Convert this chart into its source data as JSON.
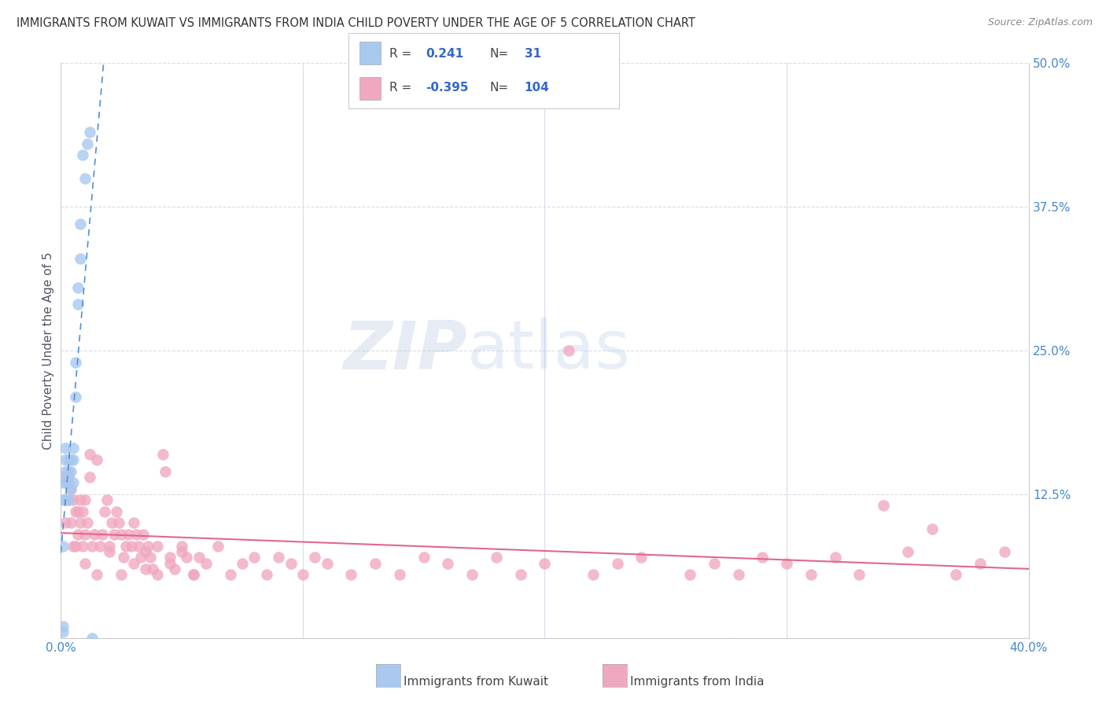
{
  "title": "IMMIGRANTS FROM KUWAIT VS IMMIGRANTS FROM INDIA CHILD POVERTY UNDER THE AGE OF 5 CORRELATION CHART",
  "source": "Source: ZipAtlas.com",
  "ylabel": "Child Poverty Under the Age of 5",
  "xlim": [
    0.0,
    0.4
  ],
  "ylim": [
    0.0,
    0.5
  ],
  "kuwait_R": 0.241,
  "kuwait_N": 31,
  "india_R": -0.395,
  "india_N": 104,
  "kuwait_color": "#a8c8f0",
  "india_color": "#f0a8c0",
  "kuwait_line_color": "#5090d0",
  "india_line_color": "#e06888",
  "background_color": "#ffffff",
  "grid_color": "#d8dce8",
  "watermark_zip": "ZIP",
  "watermark_atlas": "atlas",
  "legend_label_kuwait": "Immigrants from Kuwait",
  "legend_label_india": "Immigrants from India",
  "kuwait_x": [
    0.001,
    0.001,
    0.001,
    0.001,
    0.001,
    0.002,
    0.002,
    0.002,
    0.002,
    0.002,
    0.003,
    0.003,
    0.003,
    0.003,
    0.004,
    0.004,
    0.004,
    0.005,
    0.005,
    0.005,
    0.006,
    0.006,
    0.007,
    0.007,
    0.008,
    0.008,
    0.009,
    0.01,
    0.011,
    0.012,
    0.013
  ],
  "kuwait_y": [
    0.005,
    0.01,
    0.08,
    0.12,
    0.135,
    0.12,
    0.135,
    0.145,
    0.155,
    0.165,
    0.12,
    0.135,
    0.145,
    0.155,
    0.13,
    0.145,
    0.155,
    0.135,
    0.155,
    0.165,
    0.21,
    0.24,
    0.29,
    0.305,
    0.33,
    0.36,
    0.42,
    0.4,
    0.43,
    0.44,
    0.0
  ],
  "india_x": [
    0.001,
    0.002,
    0.003,
    0.003,
    0.004,
    0.004,
    0.005,
    0.005,
    0.006,
    0.006,
    0.007,
    0.007,
    0.008,
    0.008,
    0.009,
    0.009,
    0.01,
    0.01,
    0.011,
    0.012,
    0.012,
    0.013,
    0.014,
    0.015,
    0.016,
    0.017,
    0.018,
    0.019,
    0.02,
    0.021,
    0.022,
    0.023,
    0.024,
    0.025,
    0.026,
    0.027,
    0.028,
    0.029,
    0.03,
    0.031,
    0.032,
    0.033,
    0.034,
    0.035,
    0.036,
    0.037,
    0.038,
    0.04,
    0.042,
    0.043,
    0.045,
    0.047,
    0.05,
    0.052,
    0.055,
    0.057,
    0.06,
    0.065,
    0.07,
    0.075,
    0.08,
    0.085,
    0.09,
    0.095,
    0.1,
    0.105,
    0.11,
    0.12,
    0.13,
    0.14,
    0.15,
    0.16,
    0.17,
    0.18,
    0.19,
    0.2,
    0.21,
    0.22,
    0.23,
    0.24,
    0.26,
    0.27,
    0.28,
    0.29,
    0.3,
    0.31,
    0.32,
    0.33,
    0.34,
    0.35,
    0.36,
    0.37,
    0.38,
    0.39,
    0.01,
    0.015,
    0.02,
    0.025,
    0.03,
    0.035,
    0.04,
    0.045,
    0.05,
    0.055
  ],
  "india_y": [
    0.14,
    0.1,
    0.12,
    0.14,
    0.1,
    0.13,
    0.08,
    0.12,
    0.08,
    0.11,
    0.09,
    0.11,
    0.1,
    0.12,
    0.08,
    0.11,
    0.09,
    0.12,
    0.1,
    0.14,
    0.16,
    0.08,
    0.09,
    0.155,
    0.08,
    0.09,
    0.11,
    0.12,
    0.08,
    0.1,
    0.09,
    0.11,
    0.1,
    0.09,
    0.07,
    0.08,
    0.09,
    0.08,
    0.1,
    0.09,
    0.08,
    0.07,
    0.09,
    0.06,
    0.08,
    0.07,
    0.06,
    0.08,
    0.16,
    0.145,
    0.07,
    0.06,
    0.08,
    0.07,
    0.055,
    0.07,
    0.065,
    0.08,
    0.055,
    0.065,
    0.07,
    0.055,
    0.07,
    0.065,
    0.055,
    0.07,
    0.065,
    0.055,
    0.065,
    0.055,
    0.07,
    0.065,
    0.055,
    0.07,
    0.055,
    0.065,
    0.25,
    0.055,
    0.065,
    0.07,
    0.055,
    0.065,
    0.055,
    0.07,
    0.065,
    0.055,
    0.07,
    0.055,
    0.115,
    0.075,
    0.095,
    0.055,
    0.065,
    0.075,
    0.065,
    0.055,
    0.075,
    0.055,
    0.065,
    0.075,
    0.055,
    0.065,
    0.075,
    0.055
  ]
}
